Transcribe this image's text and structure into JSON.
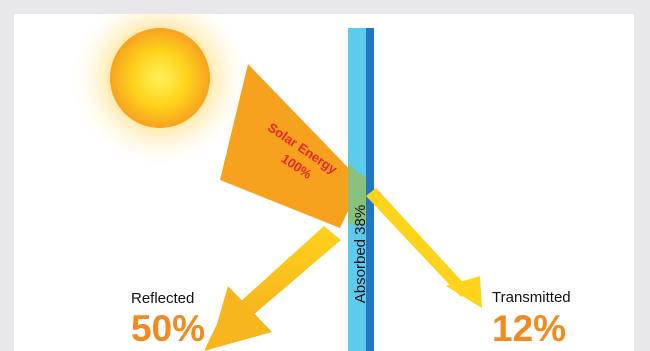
{
  "diagram": {
    "incoming": {
      "line1": "Solar Energy",
      "line2": "100%"
    },
    "absorbed": {
      "label": "Absorbed 38%"
    },
    "reflected": {
      "label": "Reflected",
      "value": "50%"
    },
    "transmitted": {
      "label": "Transmitted",
      "value": "12%"
    }
  },
  "colors": {
    "sun_core": "#ffe733",
    "sun_edge": "#f7a21e",
    "solar_beam": "#f7a21e",
    "reflected_beam": "#ffd21c",
    "glass_light": "#5ccbf0",
    "glass_dark": "#1f78c1",
    "accent_text": "#f28a1f",
    "solar_text": "#e8262b"
  }
}
